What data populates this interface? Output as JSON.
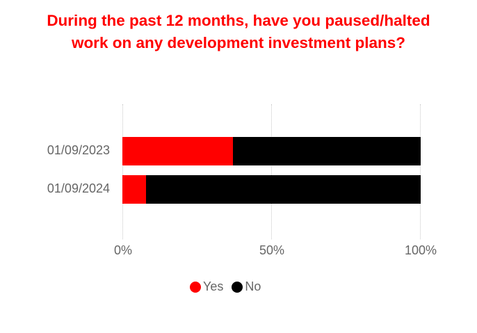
{
  "title_line1": "During the past 12 months, have you paused/halted",
  "title_line2": "work on any development investment plans?",
  "colors": {
    "title": "#ff0000",
    "yes": "#ff0000",
    "no": "#000000",
    "axis_text": "#666666",
    "grid": "#c8c8c8"
  },
  "chart_data": {
    "type": "bar",
    "orientation": "horizontal",
    "stacked": "100%",
    "title": "During the past 12 months, have you paused/halted work on any development investment plans?",
    "categories": [
      "01/09/2023",
      "01/09/2024"
    ],
    "series": [
      {
        "name": "Yes",
        "color": "#ff0000",
        "values": [
          37,
          8
        ]
      },
      {
        "name": "No",
        "color": "#000000",
        "values": [
          63,
          92
        ]
      }
    ],
    "xlabel": "",
    "ylabel": "",
    "xlim": [
      0,
      100
    ],
    "x_ticks": [
      "0%",
      "50%",
      "100%"
    ],
    "grid": "vertical dotted",
    "legend_position": "bottom"
  },
  "legend": {
    "yes": "Yes",
    "no": "No"
  }
}
